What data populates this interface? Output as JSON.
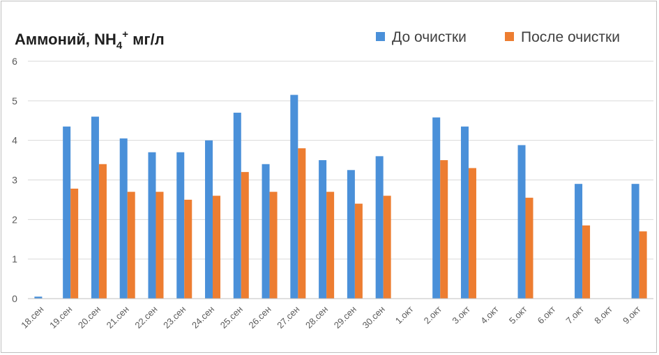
{
  "chart_data": {
    "type": "bar",
    "title": {
      "main": "Аммоний, NH",
      "sub": "4",
      "sup": "+",
      "unit": " мг/л"
    },
    "legend_position": "top-right",
    "grid": true,
    "ylim": [
      0,
      6
    ],
    "yticks": [
      "0",
      "1",
      "2",
      "3",
      "4",
      "5",
      "6"
    ],
    "categories": [
      "18.сен",
      "19.сен",
      "20.сен",
      "21.сен",
      "22.сен",
      "23.сен",
      "24.сен",
      "25.сен",
      "26.сен",
      "27.сен",
      "28.сен",
      "29.сен",
      "30.сен",
      "1.окт",
      "2.окт",
      "3.окт",
      "4.окт",
      "5.окт",
      "6.окт",
      "7.окт",
      "8.окт",
      "9.окт"
    ],
    "series": [
      {
        "name": "До очистки",
        "color": "#4a90d9",
        "values": [
          0.05,
          4.35,
          4.6,
          4.05,
          3.7,
          3.7,
          4.0,
          4.7,
          3.4,
          5.15,
          3.5,
          3.25,
          3.6,
          0,
          4.58,
          4.35,
          0,
          3.88,
          0,
          2.9,
          0,
          2.9
        ]
      },
      {
        "name": "После очистки",
        "color": "#ed7d31",
        "values": [
          0,
          2.78,
          3.4,
          2.7,
          2.7,
          2.5,
          2.6,
          3.2,
          2.7,
          3.8,
          2.7,
          2.4,
          2.6,
          0,
          3.5,
          3.3,
          0,
          2.55,
          0,
          1.85,
          0,
          1.7
        ]
      }
    ]
  }
}
